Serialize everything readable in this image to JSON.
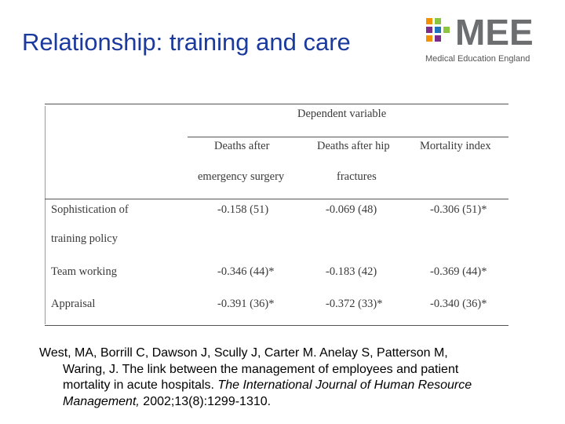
{
  "slide": {
    "title": "Relationship: training and care"
  },
  "logo": {
    "wordmark": "MEE",
    "tagline": "Medical Education England",
    "colors": {
      "orange": "#f39200",
      "green": "#8bc53f",
      "purple": "#7b2d8e",
      "blue": "#1e73be",
      "wordmark": "#6d6e70"
    }
  },
  "table": {
    "dependent_header": "Dependent variable",
    "columns": [
      {
        "line1": "Deaths after",
        "line2": "emergency surgery"
      },
      {
        "line1": "Deaths after hip",
        "line2": "fractures"
      },
      {
        "line1": "Mortality index",
        "line2": ""
      }
    ],
    "rows": [
      {
        "label_line1": "Sophistication of",
        "label_line2": "training policy",
        "values": [
          "-0.158 (51)",
          "-0.069 (48)",
          "-0.306 (51)*"
        ]
      },
      {
        "label_line1": "Team working",
        "label_line2": "",
        "values": [
          "-0.346 (44)*",
          "-0.183 (42)",
          "-0.369 (44)*"
        ]
      },
      {
        "label_line1": "Appraisal",
        "label_line2": "",
        "values": [
          "-0.391 (36)*",
          "-0.372 (33)*",
          "-0.340 (36)*"
        ]
      }
    ]
  },
  "citation": {
    "line1": "West, MA, Borrill C, Dawson J, Scully J, Carter M. Anelay S, Patterson M,",
    "line2": "Waring, J. The link between the management of employees and patient",
    "line3": "mortality in acute hospitals. ",
    "line3_italic": "The International Journal of Human Resource",
    "line4_italic": "Management,",
    "line4_rest": " 2002;13(8):1299-1310."
  }
}
